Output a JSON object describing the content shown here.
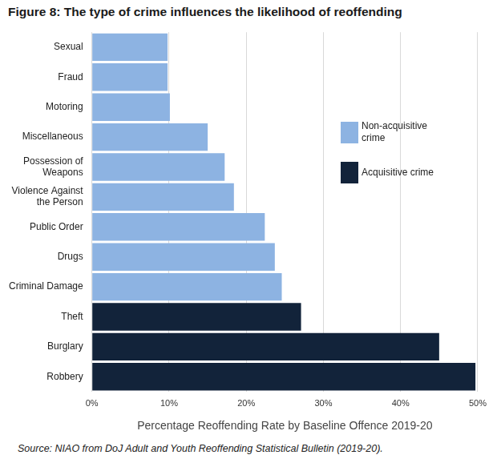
{
  "chart_data": {
    "type": "bar",
    "orientation": "horizontal",
    "title": "Figure 8: The type of crime influences the likelihood of reoffending",
    "x_label": "Percentage Reoffending Rate by Baseline Offence 2019-20",
    "source": "Source: NIAO from DoJ Adult and Youth Reoffending Statistical Bulletin (2019-20).",
    "categories": [
      "Sexual",
      "Fraud",
      "Motoring",
      "Miscellaneous",
      "Possession of Weapons",
      "Violence Against the Person",
      "Public Order",
      "Drugs",
      "Criminal Damage",
      "Theft",
      "Burglary",
      "Robbery"
    ],
    "series": [
      {
        "name": "Non-acquisitive crime",
        "color": "#8db3e2",
        "values": [
          9.8,
          9.8,
          10.1,
          15.0,
          17.2,
          18.4,
          22.4,
          23.7,
          24.6,
          null,
          null,
          null
        ]
      },
      {
        "name": "Acquisitive crime",
        "color": "#12233a",
        "values": [
          null,
          null,
          null,
          null,
          null,
          null,
          null,
          null,
          null,
          27.1,
          45.0,
          49.7
        ]
      }
    ],
    "xlim": [
      0,
      50
    ],
    "xticks": [
      {
        "value": 0,
        "label": "0%"
      },
      {
        "value": 10,
        "label": "10%"
      },
      {
        "value": 20,
        "label": "20%"
      },
      {
        "value": 30,
        "label": "30%"
      },
      {
        "value": 40,
        "label": "40%"
      },
      {
        "value": 50,
        "label": "50%"
      }
    ],
    "grid": true,
    "legend": "right"
  }
}
